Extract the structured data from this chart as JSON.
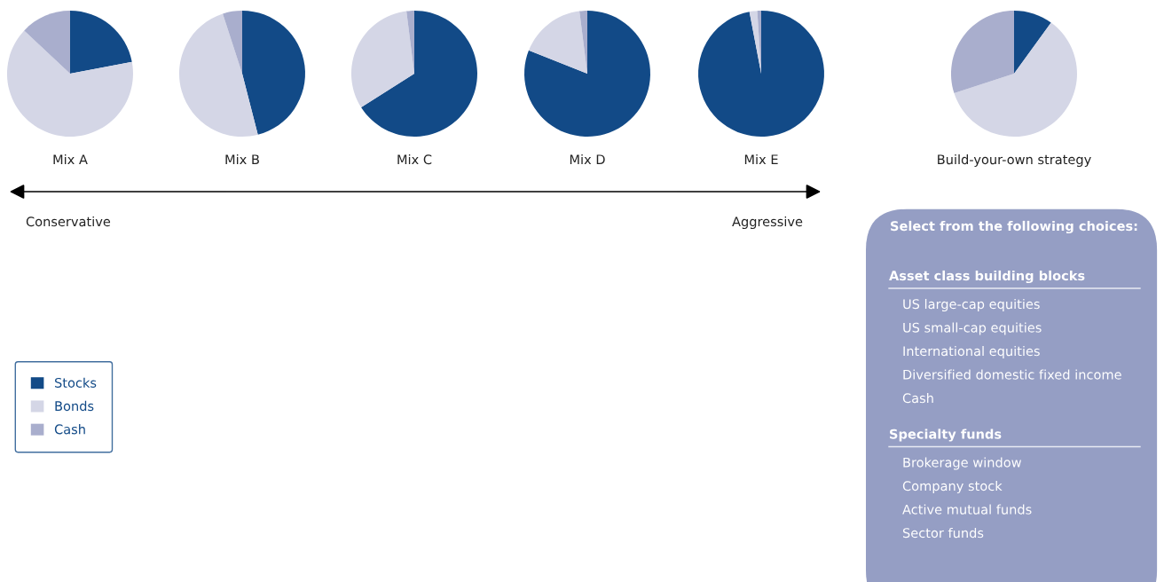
{
  "chart_data": [
    {
      "type": "pie",
      "title": "Mix A",
      "categories": [
        "Stocks",
        "Bonds",
        "Cash"
      ],
      "values": [
        22,
        65,
        13
      ],
      "colors": [
        "#124a87",
        "#d4d6e6",
        "#a9aecd"
      ],
      "legend": "bottom"
    },
    {
      "type": "pie",
      "title": "Mix B",
      "categories": [
        null,
        null,
        null
      ],
      "values": [
        46,
        49,
        5
      ],
      "colors": [
        "#124a87",
        "#d4d6e6",
        "#a9aecd"
      ]
    },
    {
      "type": "pie",
      "title": "Mix C",
      "categories": [
        null,
        null,
        null
      ],
      "values": [
        66,
        32,
        2
      ],
      "colors": [
        "#124a87",
        "#d4d6e6",
        "#a9aecd"
      ]
    },
    {
      "type": "pie",
      "title": "Mix D",
      "categories": [
        null,
        null,
        null
      ],
      "values": [
        81,
        17,
        2
      ],
      "colors": [
        "#124a87",
        "#d4d6e6",
        "#a9aecd"
      ]
    },
    {
      "type": "pie",
      "title": "Mix E",
      "categories": [
        null,
        null,
        null
      ],
      "values": [
        97,
        2,
        1
      ],
      "colors": [
        "#124a87",
        "#d4d6e6",
        "#a9aecd"
      ]
    },
    {
      "type": "pie",
      "title": "Build-your-own strategy",
      "categories": [
        null,
        null,
        null
      ],
      "values": [
        10,
        60,
        30
      ],
      "colors": [
        "#124a87",
        "#d4d6e6",
        "#a9aecd"
      ]
    },
    {
      "type": "other",
      "annotations": [
        "Conservative",
        "Aggressive"
      ]
    },
    {
      "type": "other",
      "title": "Select from the following choices:"
    },
    {
      "type": "other",
      "title": "Asset class building blocks",
      "annotations": [
        "US large-cap equities",
        "US small-cap equities",
        "International equities",
        "Diversified domestic fixed income",
        "Cash"
      ]
    },
    {
      "type": "other",
      "title": "Specialty funds",
      "annotations": [
        "Brokerage window",
        "Company stock",
        "Active mutual funds",
        "Sector funds"
      ]
    }
  ]
}
